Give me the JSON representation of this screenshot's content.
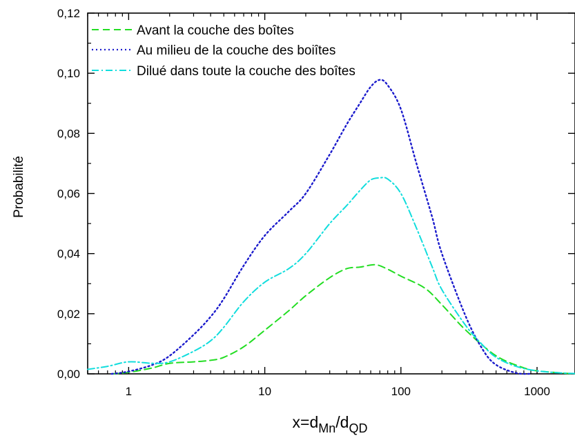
{
  "chart_data": {
    "type": "line",
    "xlabel": {
      "base": "x=d",
      "sub1": "Mn",
      "sep": "/d",
      "sub2": "QD"
    },
    "ylabel": "Probabilité",
    "xscale": "log",
    "xlim": [
      0.5,
      1900
    ],
    "ylim": [
      0,
      0.12
    ],
    "x_ticks": [
      {
        "value": 1,
        "label": "1"
      },
      {
        "value": 10,
        "label": "10"
      },
      {
        "value": 100,
        "label": "100"
      },
      {
        "value": 1000,
        "label": "1000"
      }
    ],
    "y_ticks": [
      {
        "value": 0,
        "label": "0,00"
      },
      {
        "value": 0.02,
        "label": "0,02"
      },
      {
        "value": 0.04,
        "label": "0,04"
      },
      {
        "value": 0.06,
        "label": "0,06"
      },
      {
        "value": 0.08,
        "label": "0,08"
      },
      {
        "value": 0.1,
        "label": "0,10"
      },
      {
        "value": 0.12,
        "label": "0,12"
      }
    ],
    "legend_position": "top-left",
    "grid": false,
    "series": [
      {
        "name": "Avant la couche des boîtes",
        "color": "#22dd22",
        "dash": "dashed",
        "x": [
          0.75,
          1,
          1.5,
          2,
          3,
          4,
          5,
          7,
          10,
          15,
          20,
          30,
          40,
          50,
          65,
          80,
          100,
          150,
          200,
          300,
          500,
          800,
          1000,
          1500,
          1900
        ],
        "y": [
          0,
          0.0005,
          0.002,
          0.0035,
          0.004,
          0.0045,
          0.0055,
          0.009,
          0.0145,
          0.021,
          0.026,
          0.032,
          0.035,
          0.0355,
          0.0363,
          0.0348,
          0.0325,
          0.0285,
          0.023,
          0.0145,
          0.006,
          0.002,
          0.001,
          0.0003,
          0
        ]
      },
      {
        "name": "Au milieu de la couche des boiîtes",
        "color": "#1a1acc",
        "dash": "dotted",
        "x": [
          0.75,
          1,
          1.5,
          2,
          3,
          4,
          5,
          7,
          10,
          15,
          20,
          30,
          40,
          50,
          60,
          70,
          80,
          100,
          130,
          170,
          200,
          300,
          400,
          500,
          700,
          900
        ],
        "y": [
          0,
          0.0008,
          0.003,
          0.006,
          0.013,
          0.019,
          0.025,
          0.036,
          0.046,
          0.054,
          0.06,
          0.073,
          0.083,
          0.09,
          0.0955,
          0.0978,
          0.096,
          0.088,
          0.07,
          0.052,
          0.04,
          0.019,
          0.008,
          0.003,
          0.0003,
          0
        ]
      },
      {
        "name": "Dilué dans toute la couche des boîtes",
        "color": "#11dddd",
        "dash": "dashdot",
        "x": [
          0.5,
          0.7,
          1,
          1.5,
          2,
          3,
          4,
          5,
          7,
          10,
          15,
          20,
          30,
          40,
          50,
          60,
          70,
          80,
          100,
          130,
          170,
          200,
          300,
          400,
          500,
          700,
          1000,
          1500,
          1900
        ],
        "y": [
          0.0015,
          0.0025,
          0.004,
          0.0035,
          0.004,
          0.0075,
          0.011,
          0.0155,
          0.024,
          0.0305,
          0.035,
          0.04,
          0.05,
          0.056,
          0.061,
          0.0645,
          0.0652,
          0.0648,
          0.06,
          0.0485,
          0.0355,
          0.028,
          0.016,
          0.0095,
          0.0055,
          0.0025,
          0.001,
          0.0003,
          0.0001
        ]
      }
    ]
  }
}
